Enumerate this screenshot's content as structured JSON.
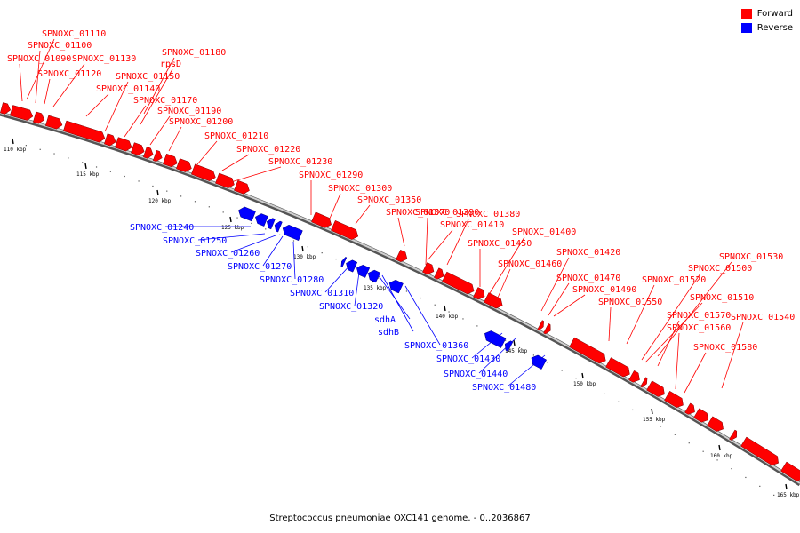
{
  "legend": {
    "forward_label": "Forward",
    "reverse_label": "Reverse",
    "forward_color": "#ff0000",
    "reverse_color": "#0000ff"
  },
  "caption": "Streptococcus pneumoniae OXC141 genome. - 0..2036867",
  "genome": {
    "start_kbp": 110,
    "end_kbp": 165,
    "tick_labels": [
      "110 kbp",
      "115 kbp",
      "120 kbp",
      "125 kbp",
      "130 kbp",
      "135 kbp",
      "140 kbp",
      "145 kbp",
      "150 kbp",
      "155 kbp",
      "160 kbp",
      "165 kbp"
    ]
  },
  "forward_genes": [
    "SPNOXC_01110",
    "SPNOXC_01100",
    "SPNOXC_01090",
    "SPNOXC_01130",
    "SPNOXC_01120",
    "SPNOXC_01180",
    "rpsD",
    "SPNOXC_01150",
    "SPNOXC_01140",
    "SPNOXC_01170",
    "SPNOXC_01190",
    "SPNOXC_01200",
    "SPNOXC_01210",
    "SPNOXC_01220",
    "SPNOXC_01230",
    "SPNOXC_01290",
    "SPNOXC_01300",
    "SPNOXC_01350",
    "SPNOXC_01370",
    "SPNOXC_01390",
    "SPNOXC_01380",
    "SPNOXC_01410",
    "SPNOXC_01400",
    "SPNOXC_01450",
    "SPNOXC_01420",
    "SPNOXC_01460",
    "SPNOXC_01470",
    "SPNOXC_01490",
    "SPNOXC_01550",
    "SPNOXC_01530",
    "SPNOXC_01500",
    "SPNOXC_01520",
    "SPNOXC_01510",
    "SPNOXC_01570",
    "SPNOXC_01540",
    "SPNOXC_01560",
    "SPNOXC_01580"
  ],
  "reverse_genes": [
    "SPNOXC_01240",
    "SPNOXC_01250",
    "SPNOXC_01260",
    "SPNOXC_01270",
    "SPNOXC_01280",
    "SPNOXC_01310",
    "SPNOXC_01320",
    "sdhA",
    "sdhB",
    "SPNOXC_01360",
    "SPNOXC_01430",
    "SPNOXC_01440",
    "SPNOXC_01480"
  ]
}
